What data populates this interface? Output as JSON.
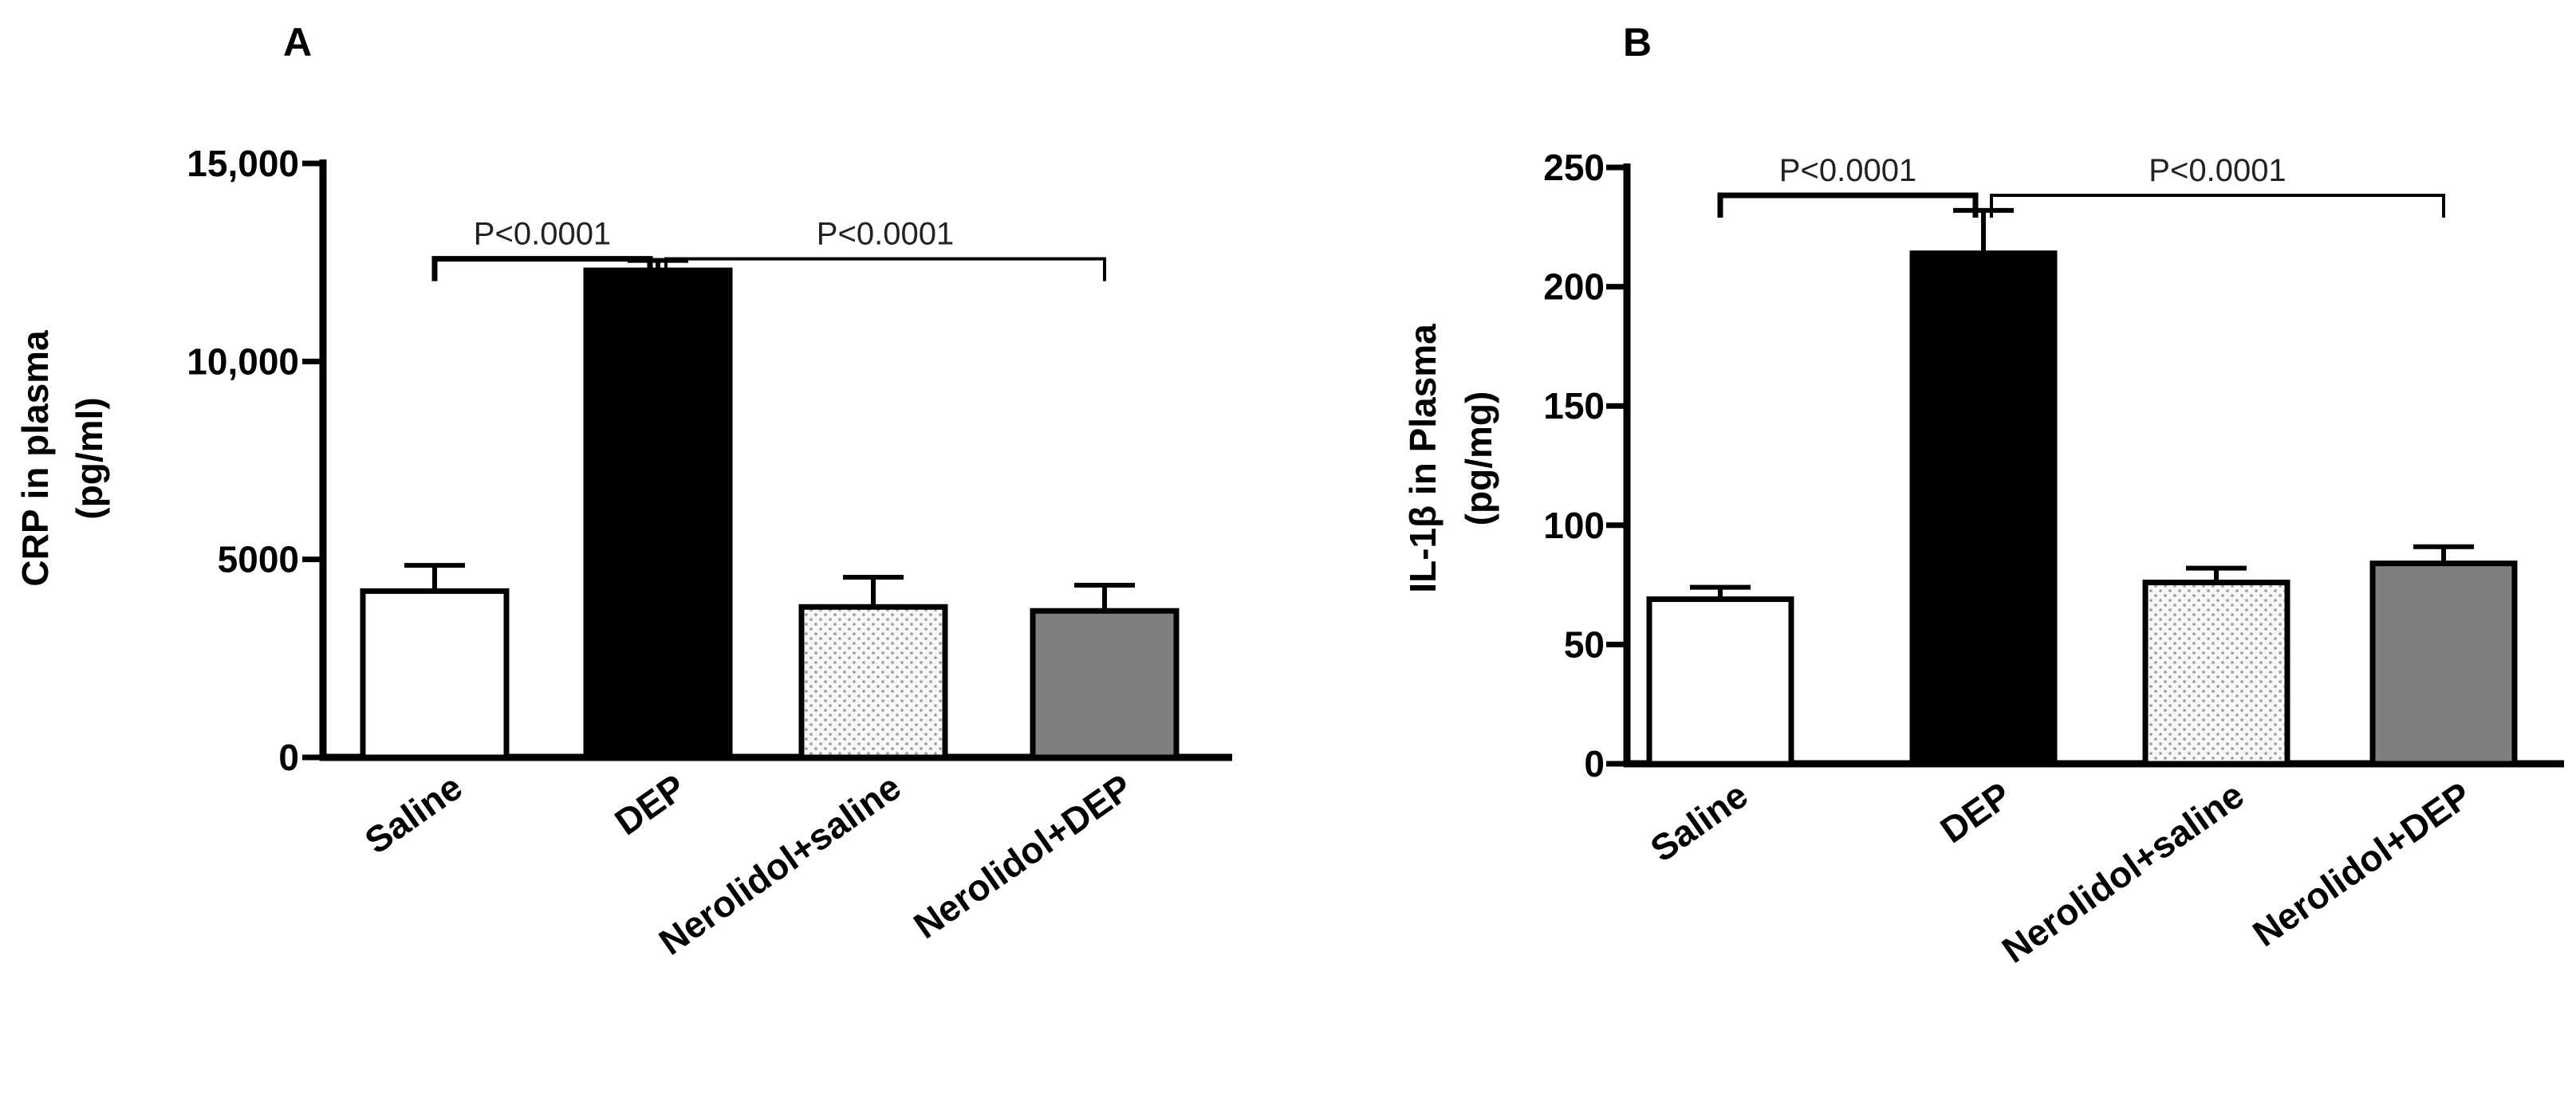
{
  "chart_data": [
    {
      "panel": "A",
      "type": "bar",
      "categories": [
        "Saline",
        "DEP",
        "Nerolidol+saline",
        "Nerolidol+DEP"
      ],
      "values": [
        4200,
        12300,
        3800,
        3700
      ],
      "errors": [
        650,
        250,
        750,
        650
      ],
      "fills": [
        "white",
        "black",
        "dots",
        "gray"
      ],
      "ylabel": [
        "CRP in plasma",
        "(pg/ml)"
      ],
      "ylim": [
        0,
        15000
      ],
      "yticks": [
        0,
        5000,
        10000,
        15000
      ],
      "ytick_labels": [
        "0",
        "5000",
        "10,000",
        "15,000"
      ],
      "significance": [
        {
          "from": 0,
          "to": 1,
          "label": "P<0.0001",
          "y": 13800,
          "bold": true
        },
        {
          "from": 1,
          "to": 3,
          "label": "P<0.0001",
          "y": 13800,
          "bold": false
        }
      ]
    },
    {
      "panel": "B",
      "type": "bar",
      "categories": [
        "Saline",
        "DEP",
        "Nerolidol+saline",
        "Nerolidol+DEP"
      ],
      "values": [
        69,
        214,
        76,
        84
      ],
      "errors": [
        5,
        18,
        6,
        7
      ],
      "fills": [
        "white",
        "black",
        "dots",
        "gray"
      ],
      "ylabel": [
        "IL-1β in  Plasma",
        "(pg/mg)"
      ],
      "ylim": [
        0,
        250
      ],
      "yticks": [
        0,
        50,
        100,
        150,
        200,
        250
      ],
      "ytick_labels": [
        "0",
        "50",
        "100",
        "150",
        "200",
        "250"
      ],
      "significance": [
        {
          "from": 0,
          "to": 1,
          "label": "P<0.0001",
          "y": 245,
          "bold": true
        },
        {
          "from": 1,
          "to": 3,
          "label": "P<0.0001",
          "y": 245,
          "bold": false
        }
      ]
    }
  ],
  "colors": {
    "white_bar": "#ffffff",
    "black_bar": "#000000",
    "dots_bar_bg": "#f7f7f7",
    "dots_bar_dot": "#9a9a9a",
    "gray_bar": "#7f7f7f"
  }
}
